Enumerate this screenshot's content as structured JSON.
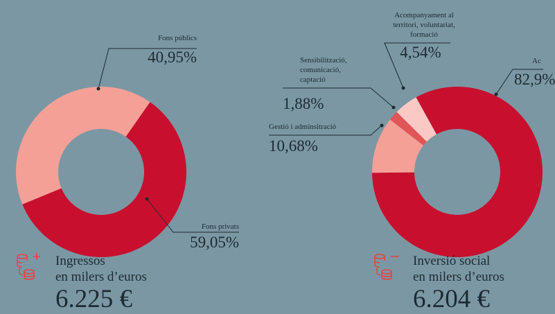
{
  "chart_data": [
    {
      "type": "donut",
      "title": "Ingressos",
      "subtitle": "en milers d’euros",
      "total": "6.225 €",
      "categories": [
        "Fons públics",
        "Fons privats"
      ],
      "values": [
        40.95,
        59.05
      ],
      "value_labels": [
        "40,95%",
        "59,05%"
      ],
      "colors": [
        "#f4a096",
        "#c8102e"
      ]
    },
    {
      "type": "donut",
      "title": "Inversió social",
      "subtitle": "en milers d’euros",
      "total": "6.204 €",
      "categories": [
        "Ac",
        "Gestió i adminsitració",
        "Sensibilització, comunicació, captació",
        "Acompanyament al territori, voluntariat, formació"
      ],
      "values": [
        82.9,
        10.68,
        1.88,
        4.54
      ],
      "value_labels": [
        "82,9%",
        "10,68%",
        "1,88%",
        "4,54%"
      ],
      "colors": [
        "#c8102e",
        "#f4a096",
        "#e05555",
        "#fbc8c4"
      ]
    }
  ]
}
